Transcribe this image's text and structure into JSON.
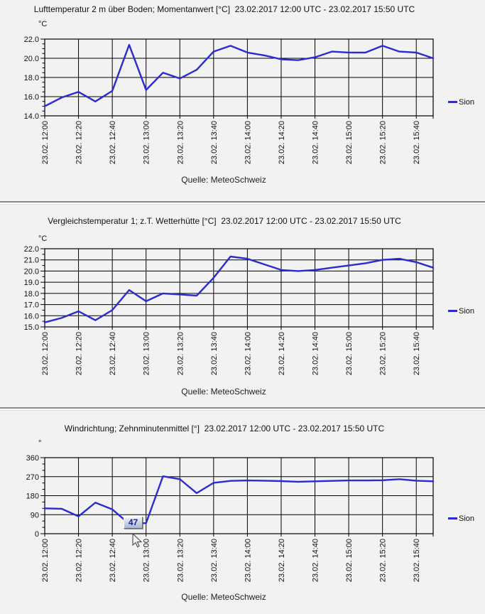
{
  "page": {
    "background": "#f2f2f2"
  },
  "chart_data": [
    {
      "type": "line",
      "title": "Lufttemperatur 2 m über Boden; Momentanwert [°C]  23.02.2017 12:00 UTC - 23.02.2017 15:50 UTC",
      "unit": "°C",
      "legend": "Sion",
      "source": "Quelle: MeteoSchweiz",
      "line_color": "#2b2bcf",
      "x": [
        "12:00",
        "12:10",
        "12:20",
        "12:30",
        "12:40",
        "12:50",
        "13:00",
        "13:10",
        "13:20",
        "13:30",
        "13:40",
        "13:50",
        "14:00",
        "14:10",
        "14:20",
        "14:30",
        "14:40",
        "14:50",
        "15:00",
        "15:10",
        "15:20",
        "15:30",
        "15:40",
        "15:50"
      ],
      "x_tick_labels": [
        "23.02. 12:00",
        "23.02. 12:20",
        "23.02. 12:40",
        "23.02. 13:00",
        "23.02. 13:20",
        "23.02. 13:40",
        "23.02. 14:00",
        "23.02. 14:20",
        "23.02. 14:40",
        "23.02. 15:00",
        "23.02. 15:20",
        "23.02. 15:40"
      ],
      "series": [
        {
          "name": "Sion",
          "values": [
            15.0,
            15.9,
            16.5,
            15.5,
            16.6,
            21.4,
            16.7,
            18.5,
            17.9,
            18.8,
            20.7,
            21.3,
            20.6,
            20.3,
            19.9,
            19.8,
            20.1,
            20.7,
            20.6,
            20.6,
            21.3,
            20.7,
            20.6,
            20.0
          ]
        }
      ],
      "ylim": [
        14.0,
        22.0
      ],
      "ytick_values": [
        14,
        16,
        18,
        20,
        22
      ],
      "ytick_labels": [
        "14.0",
        "16.0",
        "18.0",
        "20.0",
        "22.0"
      ],
      "y_minor_step": 0.5,
      "grid": true,
      "legend_position": "right"
    },
    {
      "type": "line",
      "title": "Vergleichstemperatur 1; z.T. Wetterhütte [°C]  23.02.2017 12:00 UTC - 23.02.2017 15:50 UTC",
      "unit": "°C",
      "legend": "Sion",
      "source": "Quelle: MeteoSchweiz",
      "line_color": "#2b2bcf",
      "x": [
        "12:00",
        "12:10",
        "12:20",
        "12:30",
        "12:40",
        "12:50",
        "13:00",
        "13:10",
        "13:20",
        "13:30",
        "13:40",
        "13:50",
        "14:00",
        "14:10",
        "14:20",
        "14:30",
        "14:40",
        "14:50",
        "15:00",
        "15:10",
        "15:20",
        "15:30",
        "15:40",
        "15:50"
      ],
      "x_tick_labels": [
        "23.02. 12:00",
        "23.02. 12:20",
        "23.02. 12:40",
        "23.02. 13:00",
        "23.02. 13:20",
        "23.02. 13:40",
        "23.02. 14:00",
        "23.02. 14:20",
        "23.02. 14:40",
        "23.02. 15:00",
        "23.02. 15:20",
        "23.02. 15:40"
      ],
      "series": [
        {
          "name": "Sion",
          "values": [
            15.4,
            15.8,
            16.4,
            15.6,
            16.5,
            18.3,
            17.3,
            18.0,
            17.9,
            17.8,
            19.4,
            21.3,
            21.1,
            20.6,
            20.1,
            20.0,
            20.1,
            20.3,
            20.5,
            20.7,
            21.0,
            21.1,
            20.8,
            20.3
          ]
        }
      ],
      "ylim": [
        15.0,
        22.0
      ],
      "ytick_values": [
        15,
        16,
        17,
        18,
        19,
        20,
        21,
        22
      ],
      "ytick_labels": [
        "15.0",
        "16.0",
        "17.0",
        "18.0",
        "19.0",
        "20.0",
        "21.0",
        "22.0"
      ],
      "y_minor_step": 0.5,
      "grid": true,
      "legend_position": "right"
    },
    {
      "type": "line",
      "title": "Windrichtung; Zehnminutenmittel [°]  23.02.2017 12:00 UTC - 23.02.2017 15:50 UTC",
      "unit": "°",
      "legend": "Sion",
      "source": "Quelle: MeteoSchweiz",
      "line_color": "#2b2bcf",
      "x": [
        "12:00",
        "12:10",
        "12:20",
        "12:30",
        "12:40",
        "12:50",
        "13:00",
        "13:10",
        "13:20",
        "13:30",
        "13:40",
        "13:50",
        "14:00",
        "14:10",
        "14:20",
        "14:30",
        "14:40",
        "14:50",
        "15:00",
        "15:10",
        "15:20",
        "15:30",
        "15:40",
        "15:50"
      ],
      "x_tick_labels": [
        "23.02. 12:00",
        "23.02. 12:20",
        "23.02. 12:40",
        "23.02. 13:00",
        "23.02. 13:20",
        "23.02. 13:40",
        "23.02. 14:00",
        "23.02. 14:20",
        "23.02. 14:40",
        "23.02. 15:00",
        "23.02. 15:20",
        "23.02. 15:40"
      ],
      "series": [
        {
          "name": "Sion",
          "values": [
            120,
            118,
            82,
            147,
            115,
            47,
            50,
            272,
            258,
            192,
            241,
            250,
            252,
            251,
            249,
            246,
            248,
            250,
            252,
            252,
            253,
            258,
            251,
            248
          ]
        }
      ],
      "ylim": [
        0,
        360
      ],
      "ytick_values": [
        0,
        90,
        180,
        270,
        360
      ],
      "ytick_labels": [
        "0",
        "90",
        "180",
        "270",
        "360"
      ],
      "y_minor_step": 30,
      "grid": true,
      "legend_position": "right"
    }
  ],
  "ui": {
    "tooltip": {
      "value": "47"
    },
    "cursor_icon": "arrow-cursor"
  }
}
